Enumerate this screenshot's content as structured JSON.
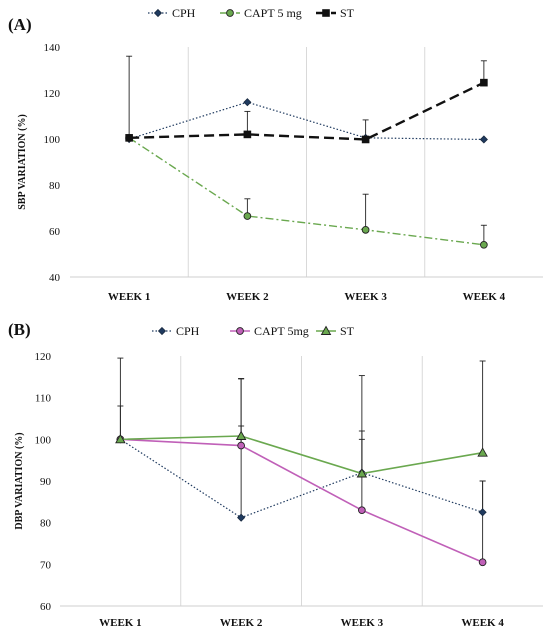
{
  "chart_data": [
    {
      "type": "line",
      "panel_label": "(A)",
      "ylabel": "SBP VARIATION (%)",
      "ylim": [
        40,
        140
      ],
      "yticks": [
        "40",
        "60",
        "80",
        "100",
        "120",
        "140"
      ],
      "categories": [
        "WEEK 1",
        "WEEK 2",
        "WEEK 3",
        "WEEK 4"
      ],
      "legend_position": "top",
      "grid": "vertical",
      "series": [
        {
          "name": "CPH",
          "values": [
            100,
            116,
            100.5,
            99.8
          ],
          "err": [
            0,
            0,
            0,
            0
          ],
          "color": "#1f3a5f",
          "line": "dotted",
          "marker": "diamond"
        },
        {
          "name": "CAPT 5 mg",
          "values": [
            100.5,
            66.5,
            60.5,
            54
          ],
          "err": [
            0,
            7.5,
            15.5,
            8.5
          ],
          "color": "#6aa84f",
          "line": "dashdot",
          "marker": "circle"
        },
        {
          "name": "ST",
          "values": [
            100.5,
            102,
            99.8,
            124.5
          ],
          "err": [
            35.5,
            10,
            8.5,
            9.5
          ],
          "color": "#111111",
          "line": "dashed",
          "marker": "square"
        }
      ]
    },
    {
      "type": "line",
      "panel_label": "(B)",
      "ylabel": "DBP VARIATION (%)",
      "ylim": [
        60,
        120
      ],
      "yticks": [
        "60",
        "70",
        "80",
        "90",
        "100",
        "110",
        "120"
      ],
      "categories": [
        "WEEK 1",
        "WEEK 2",
        "WEEK 3",
        "WEEK 4"
      ],
      "legend_position": "top",
      "grid": "vertical",
      "series": [
        {
          "name": "CPH",
          "values": [
            100,
            81.2,
            92,
            82.5
          ],
          "err": [
            0,
            22,
            8,
            7.5
          ],
          "color": "#1f3a5f",
          "line": "dotted",
          "marker": "diamond"
        },
        {
          "name": "CAPT 5mg",
          "values": [
            100,
            98.5,
            83,
            70.5
          ],
          "err": [
            8,
            16,
            19,
            19.5
          ],
          "color": "#c060b8",
          "line": "solid",
          "marker": "circle"
        },
        {
          "name": "ST",
          "values": [
            100,
            100.8,
            91.8,
            96.8
          ],
          "err": [
            19.5,
            13.8,
            23.5,
            22
          ],
          "color": "#6aa84f",
          "line": "solid",
          "marker": "triangle"
        }
      ]
    }
  ]
}
